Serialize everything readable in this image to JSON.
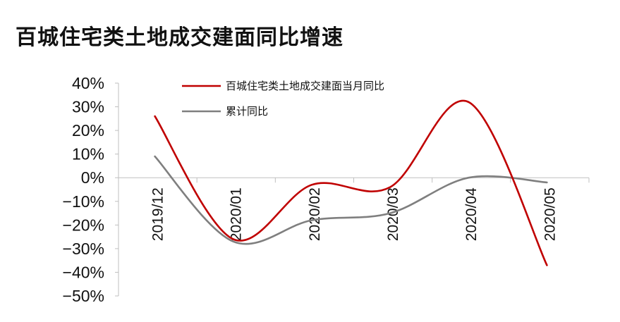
{
  "title": "百城住宅类土地成交建面同比增速",
  "chart_data": {
    "type": "line",
    "title": "百城住宅类土地成交建面同比增速",
    "categories": [
      "2019/12",
      "2020/01",
      "2020/02",
      "2020/03",
      "2020/04",
      "2020/05"
    ],
    "y_ticks": [
      "40%",
      "30%",
      "20%",
      "10%",
      "0%",
      "-10%",
      "-20%",
      "-30%",
      "-40%",
      "-50%"
    ],
    "ylim": [
      -50,
      40
    ],
    "unit": "%",
    "grid": false,
    "legend_position": "top",
    "smooth": true,
    "series": [
      {
        "name": "百城住宅类土地成交建面当月同比",
        "color": "#c00000",
        "values": [
          26,
          -26,
          -3,
          -4,
          32,
          -37
        ]
      },
      {
        "name": "累计同比",
        "color": "#7f7f7f",
        "values": [
          9,
          -27,
          -18,
          -15,
          0,
          -2
        ]
      }
    ]
  }
}
